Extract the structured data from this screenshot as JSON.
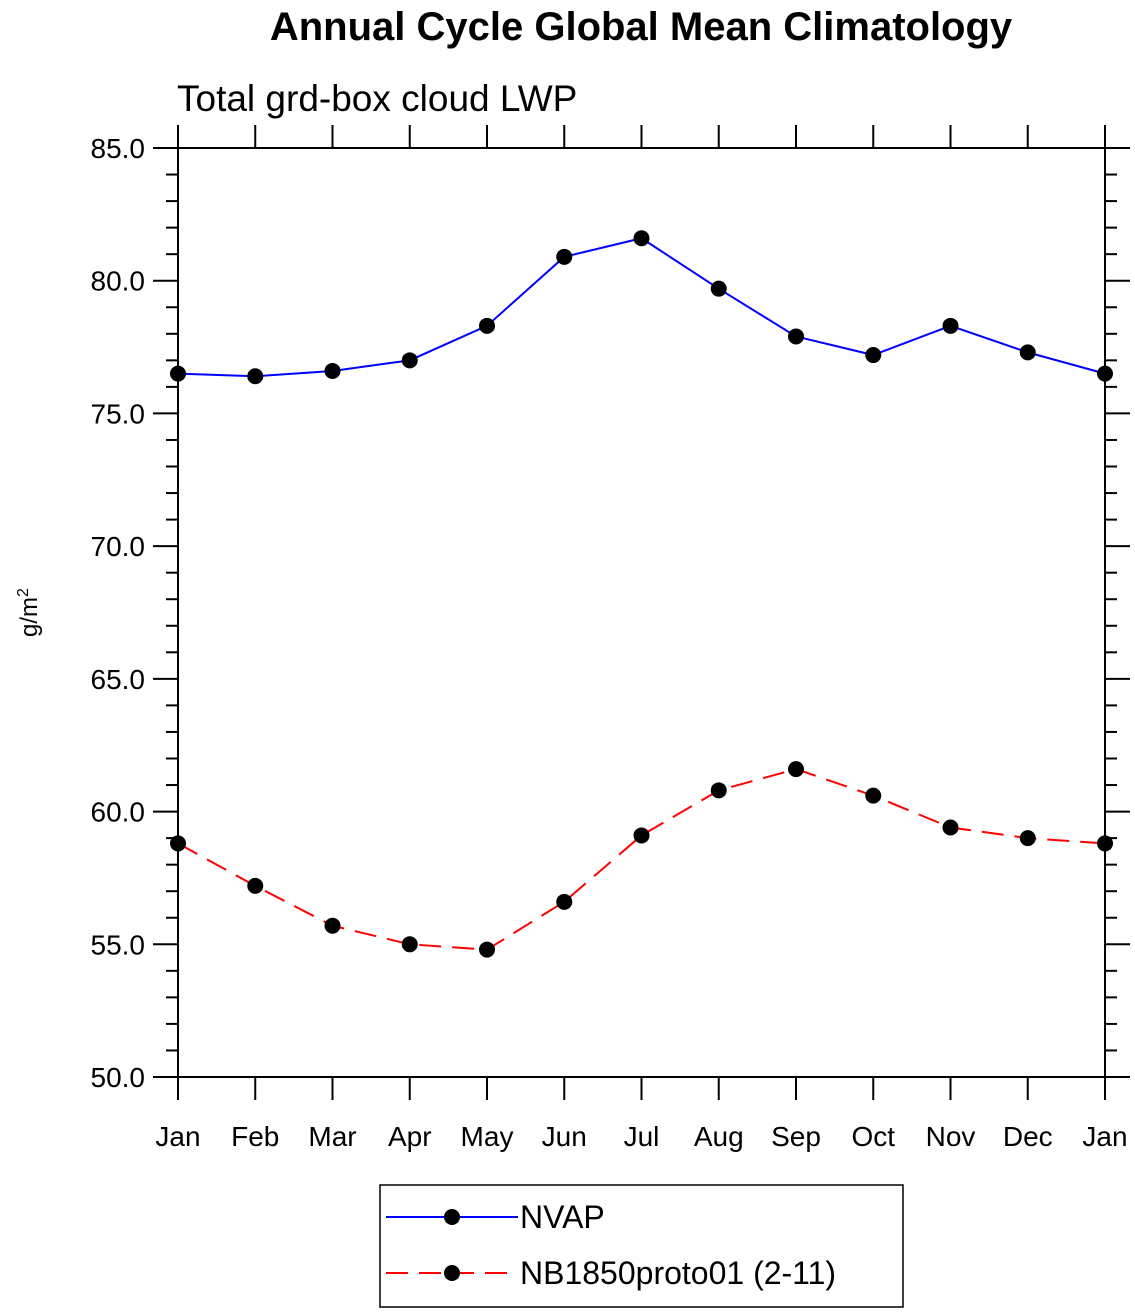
{
  "chart_data": {
    "type": "line",
    "title": "Annual Cycle Global Mean Climatology",
    "subtitle": "Total grd-box cloud LWP",
    "ylabel": "g/m",
    "ylabel_superscript": "2",
    "xlabel": "",
    "categories": [
      "Jan",
      "Feb",
      "Mar",
      "Apr",
      "May",
      "Jun",
      "Jul",
      "Aug",
      "Sep",
      "Oct",
      "Nov",
      "Dec",
      "Jan"
    ],
    "ylim": [
      50.0,
      85.0
    ],
    "yticks": [
      "50.0",
      "55.0",
      "60.0",
      "65.0",
      "70.0",
      "75.0",
      "80.0",
      "85.0"
    ],
    "grid": false,
    "legend_position": "bottom-center",
    "series": [
      {
        "name": "NVAP",
        "color": "#0000ff",
        "dash": "solid",
        "marker": "filled-circle",
        "values": [
          76.5,
          76.4,
          76.6,
          77.0,
          78.3,
          80.9,
          81.6,
          79.7,
          77.9,
          77.2,
          78.3,
          77.3,
          76.5
        ]
      },
      {
        "name": "NB1850proto01 (2-11)",
        "color": "#ff0000",
        "dash": "dashed",
        "marker": "filled-circle",
        "values": [
          58.8,
          57.2,
          55.7,
          55.0,
          54.8,
          56.6,
          59.1,
          60.8,
          61.6,
          60.6,
          59.4,
          59.0,
          58.8
        ]
      }
    ]
  }
}
